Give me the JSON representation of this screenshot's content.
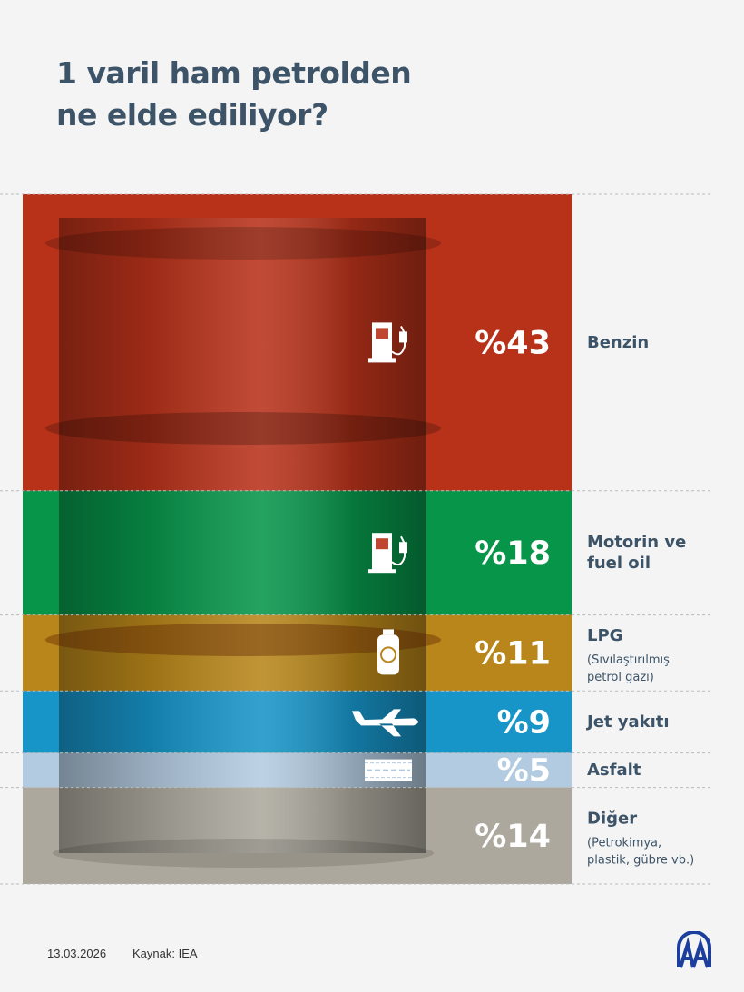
{
  "title_lines": [
    "1 varil ham petrolden",
    "ne elde ediliyor?"
  ],
  "chart_data": {
    "type": "bar",
    "stacked": true,
    "orientation": "vertical-stacked-100",
    "categories": [
      "Benzin",
      "Motorin ve fuel oil",
      "LPG",
      "Jet yakıtı",
      "Asfalt",
      "Diğer"
    ],
    "values": [
      43,
      18,
      11,
      9,
      5,
      14
    ],
    "labels": [
      "%43",
      "%18",
      "%11",
      "%9",
      "%5",
      "%14"
    ],
    "label_lines": [
      [
        "Benzin"
      ],
      [
        "Motorin ve",
        "fuel oil"
      ],
      [
        "LPG"
      ],
      [
        "Jet yakıtı"
      ],
      [
        "Asfalt"
      ],
      [
        "Diğer"
      ]
    ],
    "sublabels": [
      [],
      [],
      [
        "(Sıvılaştırılmış",
        "petrol gazı)"
      ],
      [],
      [],
      [
        "(Petrokimya,",
        "plastik, gübre vb.)"
      ]
    ],
    "icons": [
      "fuel-pump-icon",
      "fuel-pump-icon",
      "gas-cylinder-icon",
      "airplane-icon",
      "road-icon",
      ""
    ],
    "colors": [
      "#b8321a",
      "#07954a",
      "#b8861a",
      "#1794c8",
      "#b3cbe0",
      "#aca89d"
    ],
    "ylim": [
      0,
      100
    ]
  },
  "footer": {
    "date": "13.03.2026",
    "source": "Kaynak: IEA",
    "logo_text": "AA"
  }
}
